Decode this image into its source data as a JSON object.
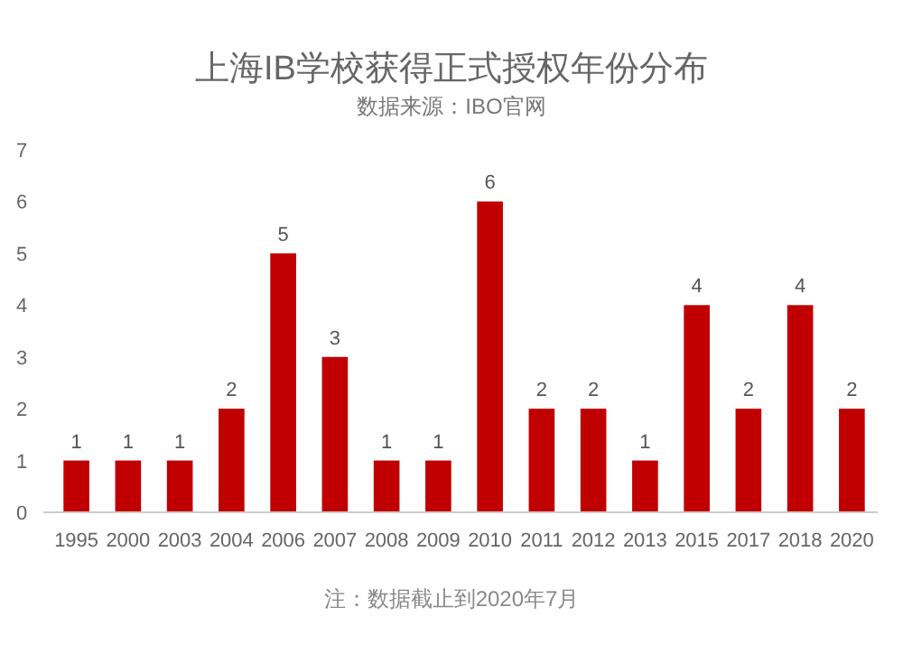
{
  "chart_data": {
    "type": "bar",
    "title": "上海IB学校获得正式授权年份分布",
    "subtitle": "数据来源：IBO官网",
    "categories": [
      "1995",
      "2000",
      "2003",
      "2004",
      "2006",
      "2007",
      "2008",
      "2009",
      "2010",
      "2011",
      "2012",
      "2013",
      "2015",
      "2017",
      "2018",
      "2020"
    ],
    "values": [
      1,
      1,
      1,
      2,
      5,
      3,
      1,
      1,
      6,
      2,
      2,
      1,
      4,
      2,
      4,
      2
    ],
    "color": "#c00000",
    "ylim": [
      0,
      7
    ],
    "yticks": [
      0,
      1,
      2,
      3,
      4,
      5,
      6,
      7
    ],
    "grid": false,
    "data_labels": true,
    "annotations": [
      "注：数据截止到2020年7月"
    ]
  }
}
